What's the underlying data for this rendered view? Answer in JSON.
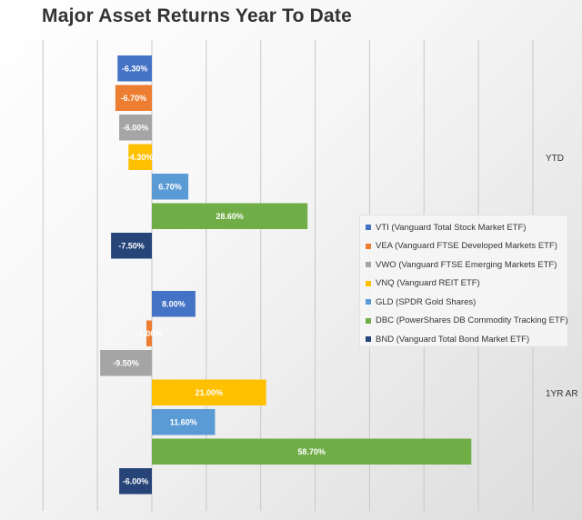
{
  "chart_data": {
    "type": "bar",
    "orientation": "horizontal",
    "title": "Major Asset Returns Year To Date",
    "categories": [
      "YTD",
      "1YR AR"
    ],
    "value_format": "percent",
    "grid": true,
    "legend_position": "right",
    "series": [
      {
        "name": "VTI (Vanguard Total Stock Market ETF)",
        "color": "#4472c4",
        "values": [
          -6.3,
          8.0
        ],
        "labels": [
          "-6.30%",
          "8.00%"
        ]
      },
      {
        "name": "VEA (Vanguard FTSE Developed Markets ETF)",
        "color": "#ed7d31",
        "values": [
          -6.7,
          -1.0
        ],
        "labels": [
          "-6.70%",
          "-1.00%"
        ]
      },
      {
        "name": "VWO (Vanguard FTSE Emerging Markets ETF)",
        "color": "#a5a5a5",
        "values": [
          -6.0,
          -9.5
        ],
        "labels": [
          "-6.00%",
          "-9.50%"
        ]
      },
      {
        "name": "VNQ (Vanguard REIT ETF)",
        "color": "#ffc000",
        "values": [
          -4.3,
          21.0
        ],
        "labels": [
          "-4.30%",
          "21.00%"
        ]
      },
      {
        "name": "GLD (SPDR Gold Shares)",
        "color": "#5b9bd5",
        "values": [
          6.7,
          11.6
        ],
        "labels": [
          "6.70%",
          "11.60%"
        ]
      },
      {
        "name": "DBC (PowerShares DB Commodity Tracking ETF)",
        "color": "#70ad47",
        "values": [
          28.6,
          58.7
        ],
        "labels": [
          "28.60%",
          "58.70%"
        ]
      },
      {
        "name": "BND (Vanguard Total Bond Market ETF)",
        "color": "#264478",
        "values": [
          -7.5,
          -6.0
        ],
        "labels": [
          "-7.50%",
          "-6.00%"
        ]
      }
    ]
  }
}
